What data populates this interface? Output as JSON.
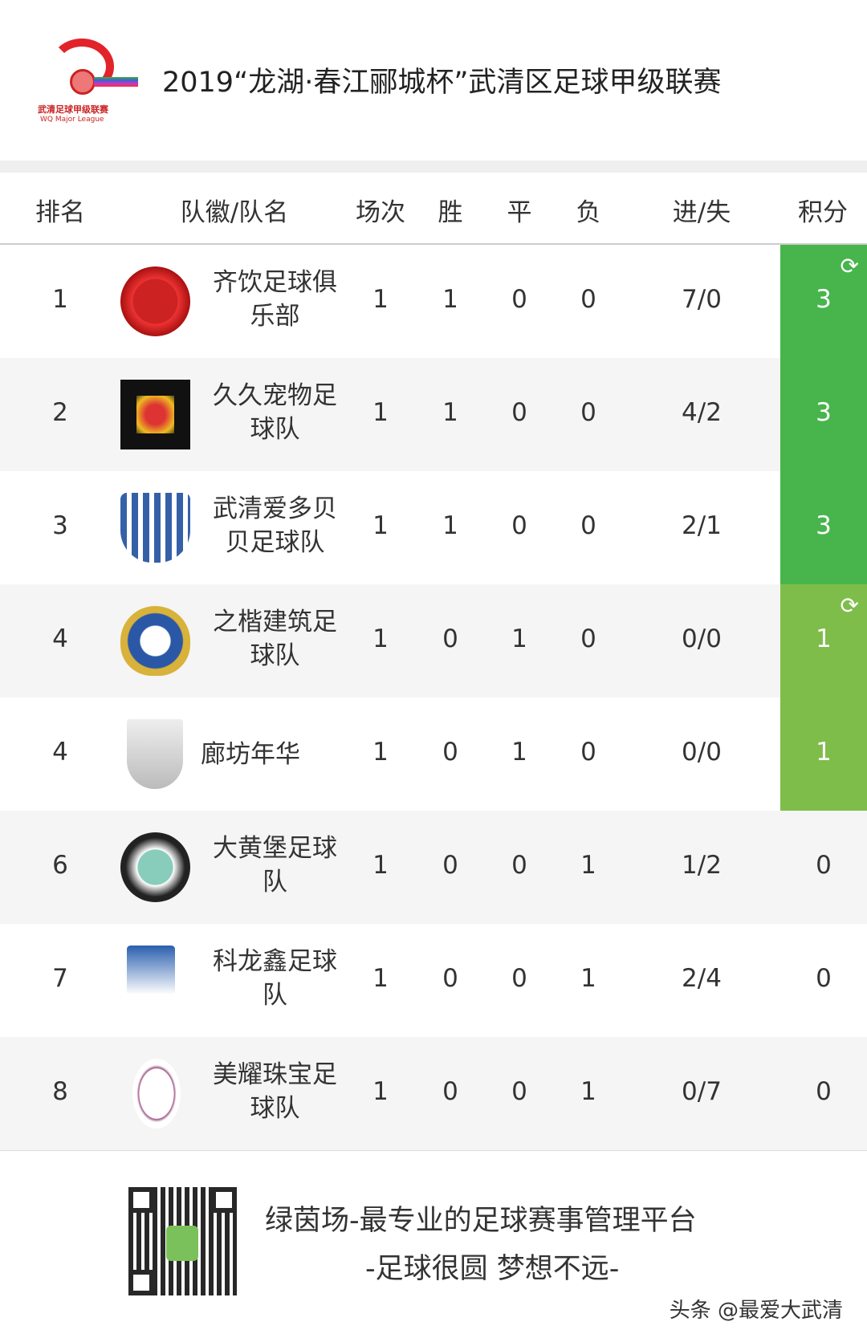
{
  "header": {
    "title": "2019“龙湖·春江郦城杯”武清区足球甲级联赛",
    "logo_text_cn": "武清足球甲级联赛",
    "logo_text_en": "WQ Major League"
  },
  "columns": [
    "排名",
    "队徽/队名",
    "场次",
    "胜",
    "平",
    "负",
    "进/失",
    "积分"
  ],
  "colors": {
    "promotion": "#47b54c",
    "playoff": "#7fbd4b",
    "alt_row": "#f5f5f5"
  },
  "rows": [
    {
      "rank": "1",
      "team": "齐饮足球俱乐部",
      "played": "1",
      "won": "1",
      "drawn": "0",
      "lost": "0",
      "goals": "7/0",
      "points": "3",
      "zone": "promotion",
      "refresh": true
    },
    {
      "rank": "2",
      "team": "久久宠物足球队",
      "played": "1",
      "won": "1",
      "drawn": "0",
      "lost": "0",
      "goals": "4/2",
      "points": "3",
      "zone": "promotion",
      "refresh": false
    },
    {
      "rank": "3",
      "team": "武清爱多贝贝足球队",
      "played": "1",
      "won": "1",
      "drawn": "0",
      "lost": "0",
      "goals": "2/1",
      "points": "3",
      "zone": "promotion",
      "refresh": false
    },
    {
      "rank": "4",
      "team": "之楷建筑足球队",
      "played": "1",
      "won": "0",
      "drawn": "1",
      "lost": "0",
      "goals": "0/0",
      "points": "1",
      "zone": "playoff",
      "refresh": true
    },
    {
      "rank": "4",
      "team": "廊坊年华",
      "played": "1",
      "won": "0",
      "drawn": "1",
      "lost": "0",
      "goals": "0/0",
      "points": "1",
      "zone": "playoff",
      "refresh": false
    },
    {
      "rank": "6",
      "team": "大黄堡足球队",
      "played": "1",
      "won": "0",
      "drawn": "0",
      "lost": "1",
      "goals": "1/2",
      "points": "0",
      "zone": "",
      "refresh": false
    },
    {
      "rank": "7",
      "team": "科龙鑫足球队",
      "played": "1",
      "won": "0",
      "drawn": "0",
      "lost": "1",
      "goals": "2/4",
      "points": "0",
      "zone": "",
      "refresh": false
    },
    {
      "rank": "8",
      "team": "美耀珠宝足球队",
      "played": "1",
      "won": "0",
      "drawn": "0",
      "lost": "1",
      "goals": "0/7",
      "points": "0",
      "zone": "",
      "refresh": false
    }
  ],
  "footer": {
    "slogan1": "绿茵场-最专业的足球赛事管理平台",
    "slogan2": "-足球很圆 梦想不远-",
    "watermark": "头条 @最爱大武清"
  },
  "icons": {
    "refresh": "refresh-icon"
  }
}
